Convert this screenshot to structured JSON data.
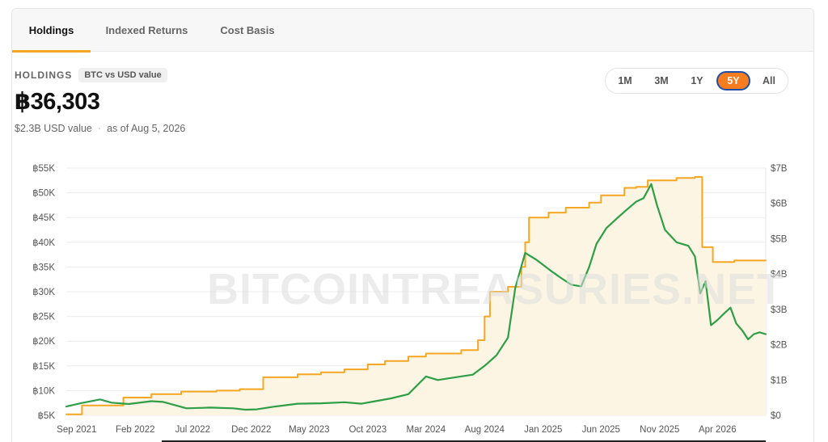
{
  "tabs": {
    "holdings": "Holdings",
    "indexed_returns": "Indexed Returns",
    "cost_basis": "Cost Basis"
  },
  "header": {
    "label": "HOLDINGS",
    "pill": "BTC vs USD value",
    "value": "฿36,303",
    "usd_value": "$2.3B USD value",
    "separator": "·",
    "as_of": "as of Aug 5, 2026"
  },
  "range_buttons": [
    {
      "label": "1M"
    },
    {
      "label": "3M"
    },
    {
      "label": "1Y"
    },
    {
      "label": "5Y",
      "active": true
    },
    {
      "label": "All"
    }
  ],
  "watermark": "BITCOINTREASURIES.NET",
  "chart_data": {
    "type": "line",
    "title": "",
    "xlabel": "",
    "left_axis": {
      "ticks": [
        "฿5K",
        "฿10K",
        "฿15K",
        "฿20K",
        "฿25K",
        "฿30K",
        "฿35K",
        "฿40K",
        "฿45K",
        "฿50K",
        "฿55K"
      ],
      "range": [
        5000,
        55000
      ],
      "unit": "BTC"
    },
    "right_axis": {
      "ticks": [
        "$0",
        "$1B",
        "$2B",
        "$3B",
        "$4B",
        "$5B",
        "$6B",
        "$7B"
      ],
      "range": [
        0,
        7
      ]
    },
    "x_axis": {
      "start": "2021-08-05",
      "end": "2026-08-05",
      "ticks": [
        {
          "label": "Sep 2021",
          "date": "2021-09-01"
        },
        {
          "label": "Feb 2022",
          "date": "2022-02-01"
        },
        {
          "label": "Jul 2022",
          "date": "2022-07-01"
        },
        {
          "label": "Dec 2022",
          "date": "2022-12-01"
        },
        {
          "label": "May 2023",
          "date": "2023-05-01"
        },
        {
          "label": "Oct 2023",
          "date": "2023-10-01"
        },
        {
          "label": "Mar 2024",
          "date": "2024-03-01"
        },
        {
          "label": "Aug 2024",
          "date": "2024-08-01"
        },
        {
          "label": "Jan 2025",
          "date": "2025-01-01"
        },
        {
          "label": "Jun 2025",
          "date": "2025-06-01"
        },
        {
          "label": "Nov 2025",
          "date": "2025-11-01"
        },
        {
          "label": "Apr 2026",
          "date": "2026-04-01"
        }
      ]
    },
    "grid": true,
    "series": [
      {
        "axis": "left",
        "color": "#f5a623",
        "fill": "#fdf5e3",
        "step": true,
        "points": [
          [
            "2021-08-05",
            5200
          ],
          [
            "2021-09-15",
            7000
          ],
          [
            "2022-01-01",
            8600
          ],
          [
            "2022-03-15",
            9300
          ],
          [
            "2022-06-01",
            9800
          ],
          [
            "2022-09-01",
            10000
          ],
          [
            "2022-11-01",
            10300
          ],
          [
            "2023-01-01",
            12700
          ],
          [
            "2023-04-01",
            13300
          ],
          [
            "2023-06-01",
            13700
          ],
          [
            "2023-08-01",
            14300
          ],
          [
            "2023-10-01",
            15300
          ],
          [
            "2023-11-15",
            16000
          ],
          [
            "2024-01-15",
            16900
          ],
          [
            "2024-03-01",
            17500
          ],
          [
            "2024-06-01",
            18200
          ],
          [
            "2024-07-15",
            20200
          ],
          [
            "2024-08-01",
            25000
          ],
          [
            "2024-08-15",
            30000
          ],
          [
            "2024-10-01",
            31000
          ],
          [
            "2024-11-05",
            35000
          ],
          [
            "2024-11-15",
            40000
          ],
          [
            "2024-11-25",
            45000
          ],
          [
            "2025-01-15",
            46000
          ],
          [
            "2025-03-01",
            47000
          ],
          [
            "2025-05-01",
            48000
          ],
          [
            "2025-06-01",
            49500
          ],
          [
            "2025-08-01",
            51000
          ],
          [
            "2025-09-01",
            51200
          ],
          [
            "2025-10-01",
            52500
          ],
          [
            "2025-12-15",
            53000
          ],
          [
            "2026-02-01",
            53200
          ],
          [
            "2026-02-20",
            39000
          ],
          [
            "2026-03-20",
            36000
          ],
          [
            "2026-05-15",
            36303
          ],
          [
            "2026-08-05",
            36303
          ]
        ]
      },
      {
        "axis": "right",
        "color": "#2e9e47",
        "step": false,
        "points": [
          [
            "2021-08-05",
            0.25
          ],
          [
            "2021-09-15",
            0.35
          ],
          [
            "2021-11-01",
            0.45
          ],
          [
            "2021-12-01",
            0.36
          ],
          [
            "2022-01-15",
            0.32
          ],
          [
            "2022-03-15",
            0.4
          ],
          [
            "2022-04-15",
            0.38
          ],
          [
            "2022-06-15",
            0.2
          ],
          [
            "2022-08-15",
            0.22
          ],
          [
            "2022-10-15",
            0.2
          ],
          [
            "2022-11-15",
            0.16
          ],
          [
            "2022-12-15",
            0.17
          ],
          [
            "2023-02-01",
            0.25
          ],
          [
            "2023-04-01",
            0.33
          ],
          [
            "2023-06-01",
            0.34
          ],
          [
            "2023-08-01",
            0.37
          ],
          [
            "2023-09-15",
            0.33
          ],
          [
            "2023-10-15",
            0.39
          ],
          [
            "2023-12-01",
            0.48
          ],
          [
            "2024-01-15",
            0.6
          ],
          [
            "2024-03-01",
            1.1
          ],
          [
            "2024-04-01",
            1.0
          ],
          [
            "2024-05-01",
            1.05
          ],
          [
            "2024-07-01",
            1.15
          ],
          [
            "2024-08-01",
            1.4
          ],
          [
            "2024-09-01",
            1.7
          ],
          [
            "2024-10-01",
            2.2
          ],
          [
            "2024-10-20",
            3.6
          ],
          [
            "2024-11-15",
            4.6
          ],
          [
            "2024-12-15",
            4.4
          ],
          [
            "2025-01-20",
            4.1
          ],
          [
            "2025-02-15",
            3.9
          ],
          [
            "2025-03-15",
            3.7
          ],
          [
            "2025-04-10",
            3.65
          ],
          [
            "2025-05-01",
            4.2
          ],
          [
            "2025-05-20",
            4.85
          ],
          [
            "2025-06-15",
            5.3
          ],
          [
            "2025-07-15",
            5.6
          ],
          [
            "2025-08-10",
            5.85
          ],
          [
            "2025-09-01",
            6.05
          ],
          [
            "2025-09-20",
            6.15
          ],
          [
            "2025-10-10",
            6.55
          ],
          [
            "2025-10-25",
            5.95
          ],
          [
            "2025-11-15",
            5.25
          ],
          [
            "2025-12-15",
            4.9
          ],
          [
            "2026-01-15",
            4.8
          ],
          [
            "2026-02-01",
            4.5
          ],
          [
            "2026-02-15",
            3.45
          ],
          [
            "2026-03-01",
            3.8
          ],
          [
            "2026-03-15",
            2.55
          ],
          [
            "2026-04-01",
            2.7
          ],
          [
            "2026-04-20",
            2.9
          ],
          [
            "2026-05-05",
            3.05
          ],
          [
            "2026-05-20",
            2.6
          ],
          [
            "2026-06-05",
            2.4
          ],
          [
            "2026-06-20",
            2.15
          ],
          [
            "2026-07-05",
            2.3
          ],
          [
            "2026-07-20",
            2.35
          ],
          [
            "2026-08-05",
            2.3
          ]
        ]
      }
    ]
  }
}
